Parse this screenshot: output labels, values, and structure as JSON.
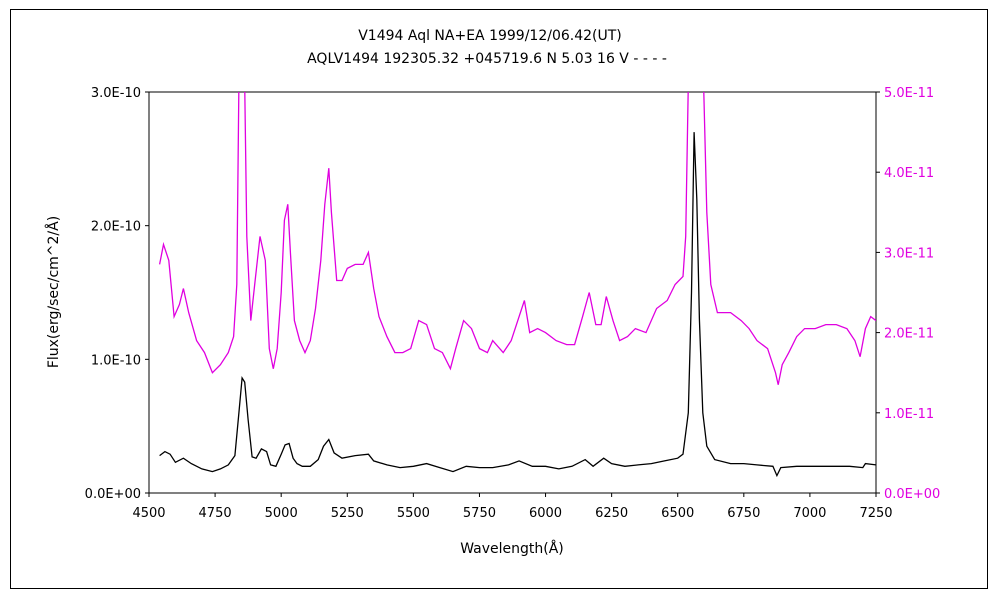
{
  "chart_data": {
    "type": "line",
    "title": "V1494 Aql    NA+EA    1999/12/06.42(UT)",
    "subtitle": "AQLV1494 192305.32 +045719.6 N 5.03 16  V - - - -",
    "xlabel": "Wavelength(Å)",
    "ylabel": "Flux(erg/sec/cm^2/Å)",
    "xlim": [
      4500,
      7250
    ],
    "ylim_left": [
      0,
      3e-10
    ],
    "ylim_right": [
      0,
      5e-11
    ],
    "x_ticks": [
      "4500",
      "4750",
      "5000",
      "5250",
      "5500",
      "5750",
      "6000",
      "6250",
      "6500",
      "6750",
      "7000",
      "7250"
    ],
    "y_ticks_left": [
      "0.0E+00",
      "1.0E-10",
      "2.0E-10",
      "3.0E-10"
    ],
    "y_ticks_right": [
      "0.0E+00",
      "1.0E-11",
      "2.0E-11",
      "3.0E-11",
      "4.0E-11",
      "5.0E-11"
    ],
    "grid": false,
    "colors": {
      "series_primary": "#000000",
      "series_secondary": "#e000e0",
      "axis": "#000000"
    },
    "series": [
      {
        "axis": "left",
        "color": "#000000",
        "points": [
          [
            4540,
            2.8e-11
          ],
          [
            4560,
            3.1e-11
          ],
          [
            4580,
            2.9e-11
          ],
          [
            4600,
            2.3e-11
          ],
          [
            4630,
            2.6e-11
          ],
          [
            4660,
            2.2e-11
          ],
          [
            4700,
            1.8e-11
          ],
          [
            4740,
            1.6e-11
          ],
          [
            4770,
            1.8e-11
          ],
          [
            4800,
            2.1e-11
          ],
          [
            4825,
            2.8e-11
          ],
          [
            4840,
            6e-11
          ],
          [
            4852,
            8.6e-11
          ],
          [
            4862,
            8.3e-11
          ],
          [
            4875,
            5.5e-11
          ],
          [
            4890,
            2.7e-11
          ],
          [
            4905,
            2.6e-11
          ],
          [
            4925,
            3.3e-11
          ],
          [
            4945,
            3.1e-11
          ],
          [
            4960,
            2.1e-11
          ],
          [
            4980,
            2e-11
          ],
          [
            5000,
            2.9e-11
          ],
          [
            5015,
            3.6e-11
          ],
          [
            5030,
            3.7e-11
          ],
          [
            5045,
            2.6e-11
          ],
          [
            5060,
            2.2e-11
          ],
          [
            5080,
            2e-11
          ],
          [
            5110,
            2e-11
          ],
          [
            5140,
            2.5e-11
          ],
          [
            5160,
            3.5e-11
          ],
          [
            5180,
            4e-11
          ],
          [
            5200,
            3e-11
          ],
          [
            5230,
            2.6e-11
          ],
          [
            5280,
            2.8e-11
          ],
          [
            5330,
            2.9e-11
          ],
          [
            5350,
            2.4e-11
          ],
          [
            5400,
            2.1e-11
          ],
          [
            5450,
            1.9e-11
          ],
          [
            5500,
            2e-11
          ],
          [
            5550,
            2.2e-11
          ],
          [
            5600,
            1.9e-11
          ],
          [
            5650,
            1.6e-11
          ],
          [
            5700,
            2e-11
          ],
          [
            5750,
            1.9e-11
          ],
          [
            5800,
            1.9e-11
          ],
          [
            5860,
            2.1e-11
          ],
          [
            5900,
            2.4e-11
          ],
          [
            5950,
            2e-11
          ],
          [
            6000,
            2e-11
          ],
          [
            6050,
            1.8e-11
          ],
          [
            6100,
            2e-11
          ],
          [
            6150,
            2.5e-11
          ],
          [
            6180,
            2e-11
          ],
          [
            6220,
            2.6e-11
          ],
          [
            6250,
            2.2e-11
          ],
          [
            6300,
            2e-11
          ],
          [
            6350,
            2.1e-11
          ],
          [
            6400,
            2.2e-11
          ],
          [
            6450,
            2.4e-11
          ],
          [
            6500,
            2.6e-11
          ],
          [
            6520,
            2.9e-11
          ],
          [
            6540,
            6e-11
          ],
          [
            6552,
            1.5e-10
          ],
          [
            6562,
            2.7e-10
          ],
          [
            6572,
            2.2e-10
          ],
          [
            6582,
            1.3e-10
          ],
          [
            6595,
            6e-11
          ],
          [
            6610,
            3.5e-11
          ],
          [
            6640,
            2.5e-11
          ],
          [
            6700,
            2.2e-11
          ],
          [
            6750,
            2.2e-11
          ],
          [
            6800,
            2.1e-11
          ],
          [
            6860,
            2e-11
          ],
          [
            6875,
            1.3e-11
          ],
          [
            6890,
            1.9e-11
          ],
          [
            6950,
            2e-11
          ],
          [
            7000,
            2e-11
          ],
          [
            7100,
            2e-11
          ],
          [
            7150,
            2e-11
          ],
          [
            7200,
            1.9e-11
          ],
          [
            7210,
            2.2e-11
          ],
          [
            7250,
            2.1e-11
          ]
        ]
      },
      {
        "axis": "right",
        "color": "#e000e0",
        "points": [
          [
            4540,
            2.85e-11
          ],
          [
            4555,
            3.1e-11
          ],
          [
            4575,
            2.9e-11
          ],
          [
            4595,
            2.2e-11
          ],
          [
            4615,
            2.35e-11
          ],
          [
            4630,
            2.55e-11
          ],
          [
            4650,
            2.25e-11
          ],
          [
            4680,
            1.9e-11
          ],
          [
            4710,
            1.75e-11
          ],
          [
            4740,
            1.5e-11
          ],
          [
            4770,
            1.6e-11
          ],
          [
            4800,
            1.75e-11
          ],
          [
            4820,
            1.95e-11
          ],
          [
            4832,
            2.6e-11
          ],
          [
            4840,
            5.1e-11
          ],
          [
            4862,
            5.1e-11
          ],
          [
            4870,
            3.2e-11
          ],
          [
            4885,
            2.15e-11
          ],
          [
            4900,
            2.6e-11
          ],
          [
            4920,
            3.2e-11
          ],
          [
            4940,
            2.9e-11
          ],
          [
            4955,
            1.8e-11
          ],
          [
            4970,
            1.55e-11
          ],
          [
            4985,
            1.8e-11
          ],
          [
            5000,
            2.5e-11
          ],
          [
            5012,
            3.4e-11
          ],
          [
            5025,
            3.6e-11
          ],
          [
            5035,
            3e-11
          ],
          [
            5050,
            2.15e-11
          ],
          [
            5070,
            1.9e-11
          ],
          [
            5090,
            1.75e-11
          ],
          [
            5110,
            1.9e-11
          ],
          [
            5130,
            2.3e-11
          ],
          [
            5150,
            2.9e-11
          ],
          [
            5165,
            3.6e-11
          ],
          [
            5180,
            4.05e-11
          ],
          [
            5190,
            3.5e-11
          ],
          [
            5210,
            2.65e-11
          ],
          [
            5230,
            2.65e-11
          ],
          [
            5250,
            2.8e-11
          ],
          [
            5280,
            2.85e-11
          ],
          [
            5310,
            2.85e-11
          ],
          [
            5330,
            3e-11
          ],
          [
            5350,
            2.55e-11
          ],
          [
            5370,
            2.2e-11
          ],
          [
            5400,
            1.95e-11
          ],
          [
            5430,
            1.75e-11
          ],
          [
            5460,
            1.75e-11
          ],
          [
            5490,
            1.8e-11
          ],
          [
            5520,
            2.15e-11
          ],
          [
            5550,
            2.1e-11
          ],
          [
            5580,
            1.8e-11
          ],
          [
            5610,
            1.75e-11
          ],
          [
            5640,
            1.55e-11
          ],
          [
            5660,
            1.8e-11
          ],
          [
            5690,
            2.15e-11
          ],
          [
            5720,
            2.05e-11
          ],
          [
            5750,
            1.8e-11
          ],
          [
            5780,
            1.75e-11
          ],
          [
            5800,
            1.9e-11
          ],
          [
            5840,
            1.75e-11
          ],
          [
            5870,
            1.9e-11
          ],
          [
            5900,
            2.2e-11
          ],
          [
            5920,
            2.4e-11
          ],
          [
            5940,
            2e-11
          ],
          [
            5970,
            2.05e-11
          ],
          [
            6000,
            2e-11
          ],
          [
            6040,
            1.9e-11
          ],
          [
            6080,
            1.85e-11
          ],
          [
            6110,
            1.85e-11
          ],
          [
            6140,
            2.2e-11
          ],
          [
            6165,
            2.5e-11
          ],
          [
            6190,
            2.1e-11
          ],
          [
            6210,
            2.1e-11
          ],
          [
            6230,
            2.45e-11
          ],
          [
            6255,
            2.15e-11
          ],
          [
            6280,
            1.9e-11
          ],
          [
            6310,
            1.95e-11
          ],
          [
            6340,
            2.05e-11
          ],
          [
            6380,
            2e-11
          ],
          [
            6420,
            2.3e-11
          ],
          [
            6460,
            2.4e-11
          ],
          [
            6490,
            2.6e-11
          ],
          [
            6520,
            2.7e-11
          ],
          [
            6530,
            3.2e-11
          ],
          [
            6540,
            5.1e-11
          ],
          [
            6598,
            5.1e-11
          ],
          [
            6610,
            3.5e-11
          ],
          [
            6625,
            2.6e-11
          ],
          [
            6650,
            2.25e-11
          ],
          [
            6700,
            2.25e-11
          ],
          [
            6740,
            2.15e-11
          ],
          [
            6770,
            2.05e-11
          ],
          [
            6800,
            1.9e-11
          ],
          [
            6840,
            1.8e-11
          ],
          [
            6870,
            1.5e-11
          ],
          [
            6880,
            1.35e-11
          ],
          [
            6895,
            1.6e-11
          ],
          [
            6920,
            1.75e-11
          ],
          [
            6950,
            1.95e-11
          ],
          [
            6980,
            2.05e-11
          ],
          [
            7020,
            2.05e-11
          ],
          [
            7060,
            2.1e-11
          ],
          [
            7100,
            2.1e-11
          ],
          [
            7140,
            2.05e-11
          ],
          [
            7170,
            1.9e-11
          ],
          [
            7190,
            1.7e-11
          ],
          [
            7210,
            2.05e-11
          ],
          [
            7230,
            2.2e-11
          ],
          [
            7250,
            2.15e-11
          ]
        ]
      }
    ]
  }
}
